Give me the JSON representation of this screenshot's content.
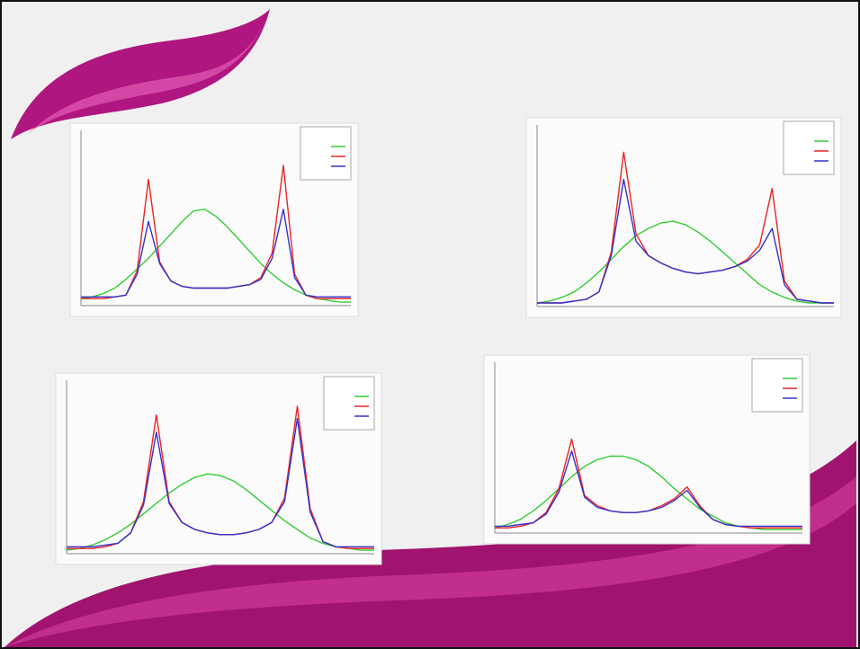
{
  "chart_data": [
    {
      "type": "line",
      "xlim": [
        0,
        24
      ],
      "ylim": [
        0,
        100
      ],
      "x": [
        0,
        1,
        2,
        3,
        4,
        5,
        6,
        7,
        8,
        9,
        10,
        11,
        12,
        13,
        14,
        15,
        16,
        17,
        18,
        19,
        20,
        21,
        22,
        23,
        24
      ],
      "series": [
        {
          "color": "#33cc33",
          "values": [
            4,
            5,
            7,
            10,
            15,
            21,
            27,
            34,
            41,
            48,
            54,
            55,
            51,
            45,
            38,
            31,
            24,
            18,
            13,
            9,
            6,
            4,
            3,
            2,
            2
          ]
        },
        {
          "color": "#ee2222",
          "values": [
            4,
            4,
            4,
            5,
            6,
            20,
            72,
            25,
            14,
            11,
            10,
            10,
            10,
            10,
            11,
            12,
            16,
            30,
            80,
            18,
            6,
            4,
            4,
            4,
            4
          ]
        },
        {
          "color": "#3333cc",
          "values": [
            5,
            5,
            5,
            5,
            6,
            18,
            48,
            24,
            14,
            11,
            10,
            10,
            10,
            10,
            11,
            12,
            15,
            27,
            55,
            16,
            6,
            5,
            5,
            5,
            5
          ]
        }
      ]
    },
    {
      "type": "line",
      "xlim": [
        0,
        24
      ],
      "ylim": [
        0,
        100
      ],
      "x": [
        0,
        1,
        2,
        3,
        4,
        5,
        6,
        7,
        8,
        9,
        10,
        11,
        12,
        13,
        14,
        15,
        16,
        17,
        18,
        19,
        20,
        21,
        22,
        23,
        24
      ],
      "series": [
        {
          "color": "#33cc33",
          "values": [
            2,
            3,
            5,
            8,
            13,
            19,
            26,
            33,
            39,
            43,
            46,
            47,
            45,
            41,
            36,
            30,
            24,
            18,
            12,
            8,
            5,
            3,
            2,
            2,
            2
          ]
        },
        {
          "color": "#ee2222",
          "values": [
            2,
            2,
            2,
            3,
            4,
            8,
            30,
            85,
            40,
            28,
            24,
            21,
            19,
            18,
            19,
            20,
            22,
            26,
            34,
            65,
            14,
            4,
            3,
            2,
            2
          ]
        },
        {
          "color": "#3333cc",
          "values": [
            2,
            2,
            2,
            3,
            4,
            8,
            28,
            70,
            36,
            28,
            24,
            21,
            19,
            18,
            19,
            20,
            22,
            25,
            31,
            43,
            12,
            4,
            3,
            2,
            2
          ]
        }
      ]
    },
    {
      "type": "line",
      "xlim": [
        0,
        24
      ],
      "ylim": [
        0,
        100
      ],
      "x": [
        0,
        1,
        2,
        3,
        4,
        5,
        6,
        7,
        8,
        9,
        10,
        11,
        12,
        13,
        14,
        15,
        16,
        17,
        18,
        19,
        20,
        21,
        22,
        23,
        24
      ],
      "series": [
        {
          "color": "#33cc33",
          "values": [
            2,
            3,
            5,
            8,
            12,
            17,
            23,
            29,
            35,
            40,
            44,
            46,
            45,
            42,
            37,
            31,
            25,
            19,
            14,
            9,
            6,
            4,
            3,
            2,
            2
          ]
        },
        {
          "color": "#ee2222",
          "values": [
            3,
            3,
            3,
            4,
            6,
            12,
            30,
            80,
            30,
            18,
            14,
            12,
            11,
            11,
            12,
            14,
            18,
            32,
            85,
            26,
            7,
            4,
            3,
            3,
            3
          ]
        },
        {
          "color": "#3333cc",
          "values": [
            4,
            4,
            4,
            5,
            6,
            12,
            28,
            70,
            29,
            18,
            14,
            12,
            11,
            11,
            12,
            14,
            18,
            30,
            78,
            24,
            7,
            4,
            4,
            4,
            4
          ]
        }
      ]
    },
    {
      "type": "line",
      "xlim": [
        0,
        24
      ],
      "ylim": [
        0,
        100
      ],
      "x": [
        0,
        1,
        2,
        3,
        4,
        5,
        6,
        7,
        8,
        9,
        10,
        11,
        12,
        13,
        14,
        15,
        16,
        17,
        18,
        19,
        20,
        21,
        22,
        23,
        24
      ],
      "series": [
        {
          "color": "#33cc33",
          "values": [
            3,
            5,
            8,
            13,
            19,
            26,
            33,
            39,
            43,
            45,
            45,
            43,
            39,
            33,
            26,
            20,
            14,
            10,
            6,
            4,
            3,
            2,
            2,
            2,
            2
          ]
        },
        {
          "color": "#ee2222",
          "values": [
            3,
            3,
            4,
            6,
            12,
            26,
            55,
            22,
            16,
            13,
            12,
            12,
            13,
            16,
            20,
            27,
            16,
            8,
            5,
            4,
            3,
            3,
            3,
            3,
            3
          ]
        },
        {
          "color": "#3333cc",
          "values": [
            4,
            4,
            5,
            6,
            11,
            24,
            48,
            21,
            15,
            13,
            12,
            12,
            13,
            15,
            19,
            25,
            15,
            8,
            5,
            4,
            4,
            4,
            4,
            4,
            4
          ]
        }
      ]
    }
  ]
}
